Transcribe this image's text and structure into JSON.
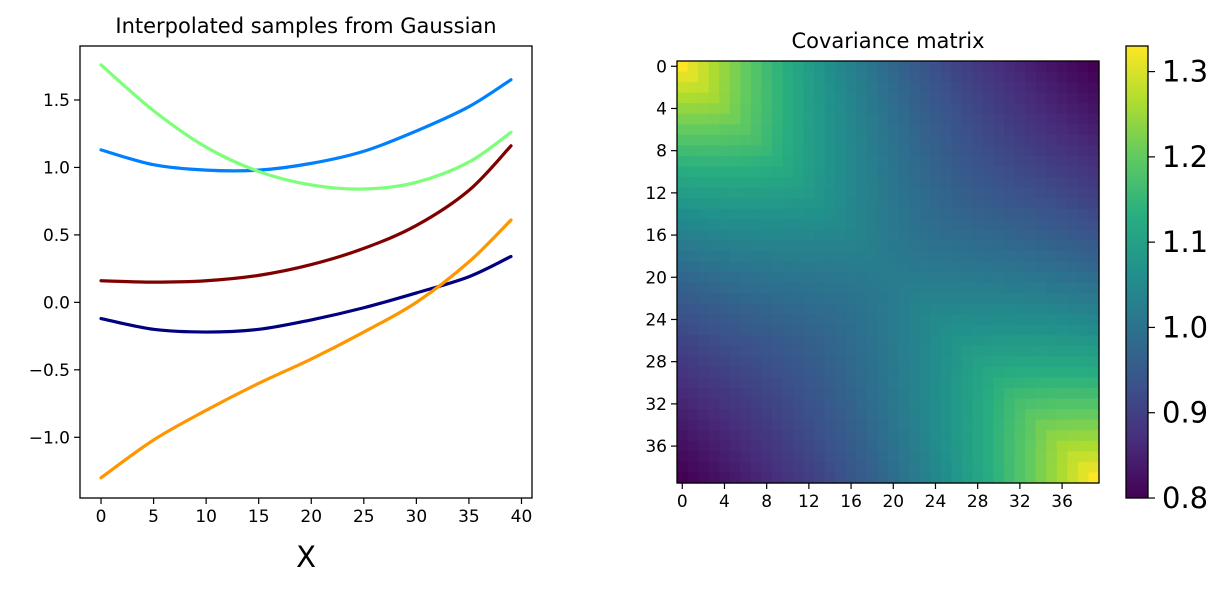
{
  "chart_data": [
    {
      "type": "line",
      "title": "Interpolated samples from Gaussian",
      "xlabel": "X",
      "ylabel": "",
      "xlim": [
        -2,
        41
      ],
      "ylim": [
        -1.45,
        1.9
      ],
      "xticks": [
        0,
        5,
        10,
        15,
        20,
        25,
        30,
        35,
        40
      ],
      "yticks": [
        -1.0,
        -0.5,
        0.0,
        0.5,
        1.0,
        1.5
      ],
      "ytick_labels": [
        "−1.0",
        "−0.5",
        "0.0",
        "0.5",
        "1.0",
        "1.5"
      ],
      "x": [
        0,
        5,
        10,
        15,
        20,
        25,
        30,
        35,
        39
      ],
      "series": [
        {
          "color": "#0080ff",
          "values": [
            1.13,
            1.02,
            0.98,
            0.98,
            1.03,
            1.12,
            1.27,
            1.45,
            1.65
          ]
        },
        {
          "color": "#7dff7a",
          "values": [
            1.76,
            1.42,
            1.15,
            0.97,
            0.87,
            0.84,
            0.89,
            1.04,
            1.26
          ]
        },
        {
          "color": "#7f0000",
          "values": [
            0.16,
            0.15,
            0.16,
            0.2,
            0.28,
            0.4,
            0.57,
            0.83,
            1.16
          ]
        },
        {
          "color": "#000080",
          "values": [
            -0.12,
            -0.2,
            -0.22,
            -0.2,
            -0.13,
            -0.04,
            0.07,
            0.19,
            0.34
          ]
        },
        {
          "color": "#ff9600",
          "values": [
            -1.3,
            -1.02,
            -0.8,
            -0.6,
            -0.42,
            -0.22,
            0.0,
            0.3,
            0.61
          ]
        }
      ]
    },
    {
      "type": "heatmap",
      "title": "Covariance matrix",
      "size": 40,
      "colormap": "viridis",
      "row_tick_labels": [
        "0",
        "4",
        "8",
        "12",
        "16",
        "20",
        "24",
        "28",
        "32",
        "36"
      ],
      "col_tick_labels": [
        "0",
        "4",
        "8",
        "12",
        "16",
        "20",
        "24",
        "28",
        "32",
        "36"
      ],
      "colorbar": {
        "range": [
          0.8,
          1.33
        ],
        "tick_values": [
          0.8,
          0.9,
          1.0,
          1.1,
          1.2,
          1.3
        ],
        "tick_labels": [
          "0.8",
          "0.9",
          "1.0",
          "1.1",
          "1.2",
          "1.3"
        ]
      },
      "values_model": {
        "top_left": 1.33,
        "bottom_right": 1.33,
        "top_right_corner": 0.8,
        "bottom_left_corner": 0.8,
        "center": 1.02
      }
    }
  ]
}
